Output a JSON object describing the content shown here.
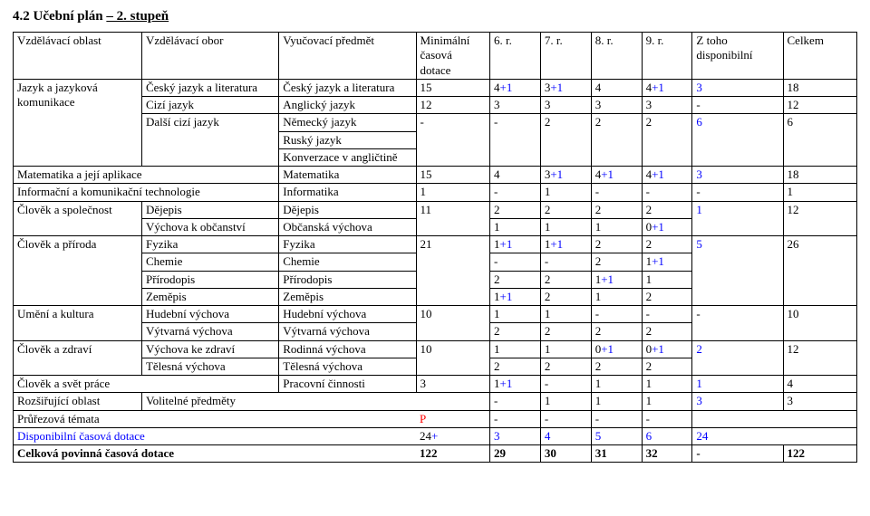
{
  "title_prefix": "4.2 Učební plán ",
  "title_underlined": "– 2. stupeň",
  "headers": {
    "area": "Vzdělávací oblast",
    "field": "Vzdělávací obor",
    "subject": "Vyučovací předmět",
    "minimal": "Minimální časová dotace",
    "r6": "6. r.",
    "r7": "7. r.",
    "r8": "8. r.",
    "r9": "9. r.",
    "disp": "Z toho disponibilní",
    "total": "Celkem"
  },
  "rows": {
    "czech": {
      "area": "Jazyk a jazyková komunikace",
      "field": "Český jazyk a literatura",
      "subj": "Český jazyk a literatura",
      "min": "15",
      "r6": "4",
      "r6b": "+1",
      "r7": "3",
      "r7b": "+1",
      "r8": "4",
      "r9": "4",
      "r9b": "+1",
      "disp": "3",
      "tot": "18"
    },
    "english": {
      "field": "Cizí jazyk",
      "subj": "Anglický jazyk",
      "min": "12",
      "r6": "3",
      "r7": "3",
      "r8": "3",
      "r9": "3",
      "disp": "-",
      "tot": "12"
    },
    "german": {
      "field": "Další cizí jazyk",
      "subj": "Německý jazyk",
      "min": "-",
      "r6": "-",
      "r7": "2",
      "r8": "2",
      "r9": "2",
      "disp": "6",
      "tot": "6"
    },
    "russian": {
      "subj": "Ruský jazyk"
    },
    "engconv": {
      "subj": "Konverzace v angličtině"
    },
    "math": {
      "area": "Matematika a její aplikace",
      "subj": "Matematika",
      "min": "15",
      "r6": "4",
      "r7": "3",
      "r7b": "+1",
      "r8": "4",
      "r8b": "+1",
      "r9": "4",
      "r9b": "+1",
      "disp": "3",
      "tot": "18"
    },
    "ict": {
      "area": "Informační a komunikační technologie",
      "subj": "Informatika",
      "min": "1",
      "r6": "-",
      "r7": "1",
      "r8": "-",
      "r9": "-",
      "disp": "-",
      "tot": "1"
    },
    "dejepis": {
      "area": "Člověk a společnost",
      "field": "Dějepis",
      "subj": "Dějepis",
      "min": "11",
      "r6": "2",
      "r7": "2",
      "r8": "2",
      "r9": "2",
      "disp": "1",
      "tot": "12"
    },
    "obcanska": {
      "field": "Výchova k občanství",
      "subj": "Občanská výchova",
      "r6": "1",
      "r7": "1",
      "r8": "1",
      "r9": "0",
      "r9b": "+1"
    },
    "fyzika": {
      "area": "Člověk a příroda",
      "field": "Fyzika",
      "subj": "Fyzika",
      "min": "21",
      "r6": "1",
      "r6b": "+1",
      "r7": "1",
      "r7b": "+1",
      "r8": "2",
      "r9": "2",
      "disp": "5",
      "tot": "26"
    },
    "chemie": {
      "field": "Chemie",
      "subj": "Chemie",
      "r6": "-",
      "r7": "-",
      "r8": "2",
      "r9": "1",
      "r9b": "+1"
    },
    "prirodopis": {
      "field": "Přírodopis",
      "subj": "Přírodopis",
      "r6": "2",
      "r7": "2",
      "r8": "1",
      "r8b": "+1",
      "r9": "1"
    },
    "zemepis": {
      "field": "Zeměpis",
      "subj": "Zeměpis",
      "r6": "1",
      "r6b": "+1",
      "r7": "2",
      "r8": "1",
      "r9": "2"
    },
    "hudebni": {
      "area": "Umění a kultura",
      "field": "Hudební výchova",
      "subj": "Hudební výchova",
      "min": "10",
      "r6": "1",
      "r7": "1",
      "r8": "-",
      "r9": "-",
      "disp": "-",
      "tot": "10"
    },
    "vytvarna": {
      "field": "Výtvarná výchova",
      "subj": "Výtvarná výchova",
      "r6": "2",
      "r7": "2",
      "r8": "2",
      "r9": "2"
    },
    "rodinna": {
      "area": "Člověk a zdraví",
      "field": "Výchova ke zdraví",
      "subj": "Rodinná výchova",
      "min": "10",
      "r6": "1",
      "r7": "1",
      "r8": "0",
      "r8b": "+1",
      "r9": "0",
      "r9b": "+1",
      "disp": "2",
      "tot": "12"
    },
    "telesna": {
      "field": "Tělesná výchova",
      "subj": "Tělesná výchova",
      "r6": "2",
      "r7": "2",
      "r8": "2",
      "r9": "2"
    },
    "pracovni": {
      "area": "Člověk a svět práce",
      "subj": "Pracovní činnosti",
      "min": "3",
      "r6": "1",
      "r6b": "+1",
      "r7": "-",
      "r8": "1",
      "r9": "1",
      "disp": "1",
      "tot": "4"
    },
    "volitelne": {
      "area": "Rozšiřující oblast",
      "field": "Volitelné předměty",
      "r6": "-",
      "r7": "1",
      "r8": "1",
      "r9": "1",
      "disp": "3",
      "tot": "3"
    },
    "prurezova": {
      "area": "Průřezová témata",
      "subj": "P",
      "r6": "-",
      "r7": "-",
      "r8": "-",
      "r9": "-"
    },
    "disptotal": {
      "area": "Disponibilní časová dotace",
      "min": "24",
      "minb": "+",
      "r6": "3",
      "r7": "4",
      "r8": "5",
      "r9": "6",
      "disp": "24"
    },
    "celkem": {
      "area": "Celková povinná časová dotace",
      "min": "122",
      "r6": "29",
      "r7": "30",
      "r8": "31",
      "r9": "32",
      "disp": "-",
      "tot": "122"
    }
  }
}
